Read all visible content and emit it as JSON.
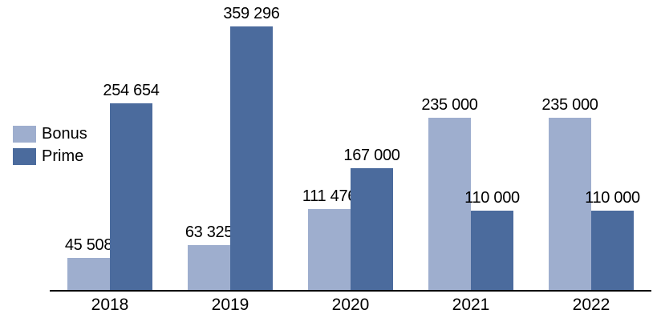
{
  "chart_data": {
    "type": "bar",
    "title": "",
    "xlabel": "",
    "ylabel": "",
    "categories": [
      "2018",
      "2019",
      "2020",
      "2021",
      "2022"
    ],
    "series": [
      {
        "name": "Bonus",
        "color": "#9EAECE",
        "values": [
          45508,
          63325,
          111476,
          235000,
          235000
        ],
        "data_labels": [
          "45 508",
          "63 325",
          "111 476",
          "235 000",
          "235 000"
        ]
      },
      {
        "name": "Prime",
        "color": "#4B6B9D",
        "values": [
          254654,
          359296,
          167000,
          110000,
          110000
        ],
        "data_labels": [
          "254 654",
          "359 296",
          "167 000",
          "110 000",
          "110 000"
        ]
      }
    ],
    "ylim": [
      0,
      395000
    ],
    "grid": false,
    "legend_position": "middle-left",
    "axis_color": "#000000",
    "label_color": "#000000",
    "background_color": "#ffffff"
  }
}
